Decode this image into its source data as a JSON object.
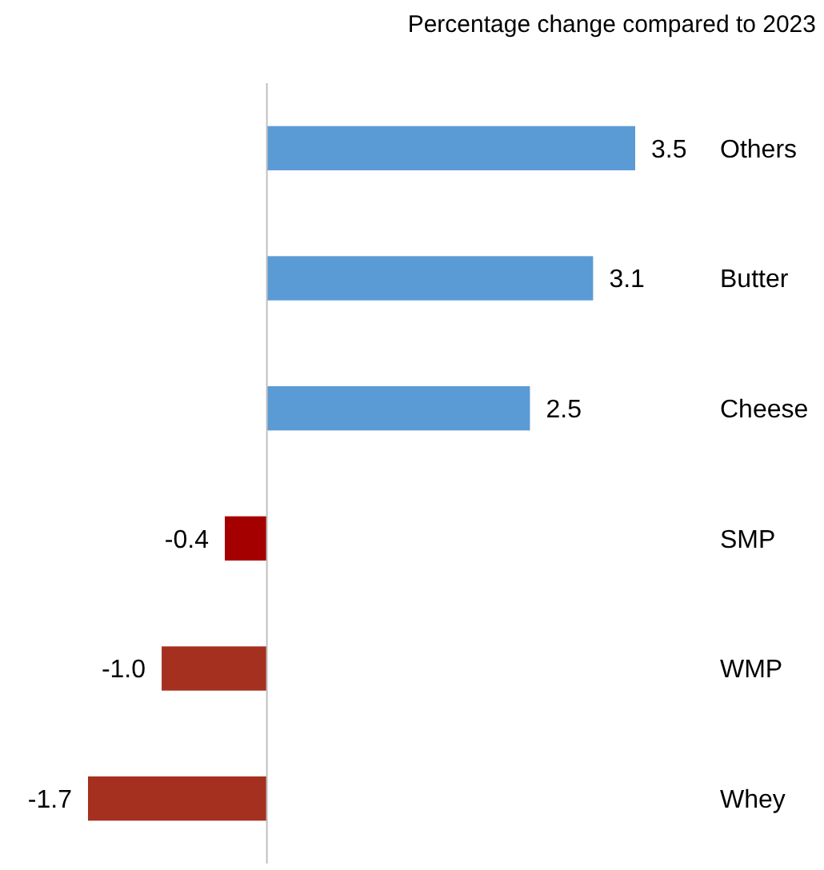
{
  "chart_data": {
    "type": "bar",
    "orientation": "horizontal",
    "title": "Percentage change compared to 2023",
    "categories": [
      "Others",
      "Butter",
      "Cheese",
      "SMP",
      "WMP",
      "Whey"
    ],
    "values": [
      3.5,
      3.1,
      2.5,
      -0.4,
      -1.0,
      -1.7
    ],
    "value_labels": [
      "3.5",
      "3.1",
      "2.5",
      "-0.4",
      "-1.0",
      "-1.7"
    ],
    "colors": [
      "#5b9bd5",
      "#5b9bd5",
      "#5b9bd5",
      "#a50000",
      "#a5301f",
      "#a5301f"
    ],
    "xlim": [
      -1.7,
      3.5
    ]
  }
}
